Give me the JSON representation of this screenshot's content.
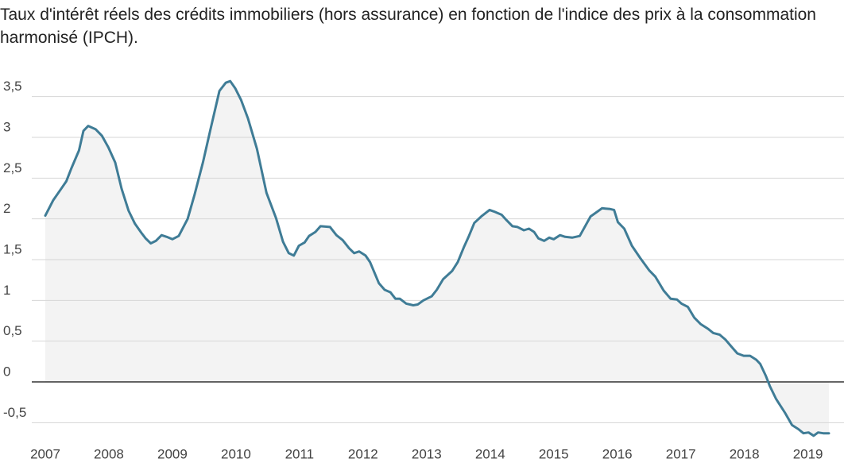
{
  "chart_data": {
    "type": "line",
    "title": "Taux d'intérêt réels des crédits immobiliers (hors assurance) en fonction de l'indice des prix à  la consommation harmonisé (IPCH).",
    "color": "#3f7c96",
    "x": [
      2007.0,
      2007.125,
      2007.25,
      2007.33,
      2007.41,
      2007.53,
      2007.6,
      2007.675,
      2007.79,
      2007.89,
      2007.99,
      2008.1,
      2008.2,
      2008.31,
      2008.41,
      2008.51,
      2008.58,
      2008.66,
      2008.74,
      2008.83,
      2008.91,
      2009.0,
      2009.1,
      2009.24,
      2009.35,
      2009.48,
      2009.6,
      2009.74,
      2009.84,
      2009.91,
      2009.99,
      2010.08,
      2010.19,
      2010.33,
      2010.48,
      2010.63,
      2010.74,
      2010.83,
      2010.91,
      2010.99,
      2011.08,
      2011.15,
      2011.25,
      2011.33,
      2011.48,
      2011.58,
      2011.68,
      2011.78,
      2011.86,
      2011.94,
      2012.04,
      2012.11,
      2012.25,
      2012.34,
      2012.43,
      2012.51,
      2012.58,
      2012.68,
      2012.79,
      2012.86,
      2012.95,
      2013.08,
      2013.16,
      2013.26,
      2013.4,
      2013.49,
      2013.59,
      2013.66,
      2013.75,
      2013.86,
      2013.99,
      2014.06,
      2014.18,
      2014.25,
      2014.35,
      2014.43,
      2014.53,
      2014.61,
      2014.69,
      2014.76,
      2014.85,
      2014.93,
      2015.0,
      2015.1,
      2015.18,
      2015.29,
      2015.41,
      2015.58,
      2015.69,
      2015.76,
      2015.89,
      2015.95,
      2016.01,
      2016.11,
      2016.23,
      2016.36,
      2016.5,
      2016.6,
      2016.73,
      2016.84,
      2016.94,
      2017.01,
      2017.11,
      2017.21,
      2017.31,
      2017.43,
      2017.51,
      2017.61,
      2017.7,
      2017.8,
      2017.89,
      2017.99,
      2018.09,
      2018.19,
      2018.25,
      2018.34,
      2018.4,
      2018.5,
      2018.64,
      2018.75,
      2018.85,
      2018.93,
      2019.01,
      2019.09,
      2019.16,
      2019.24,
      2019.33
    ],
    "values": [
      2.04,
      2.23,
      2.37,
      2.46,
      2.62,
      2.84,
      3.08,
      3.14,
      3.1,
      3.02,
      2.88,
      2.69,
      2.37,
      2.1,
      1.94,
      1.83,
      1.76,
      1.7,
      1.73,
      1.8,
      1.78,
      1.75,
      1.79,
      2.0,
      2.3,
      2.69,
      3.1,
      3.57,
      3.67,
      3.69,
      3.6,
      3.46,
      3.23,
      2.86,
      2.32,
      2.01,
      1.72,
      1.58,
      1.55,
      1.67,
      1.71,
      1.79,
      1.84,
      1.91,
      1.9,
      1.8,
      1.74,
      1.64,
      1.58,
      1.6,
      1.55,
      1.47,
      1.21,
      1.13,
      1.1,
      1.02,
      1.02,
      0.96,
      0.94,
      0.95,
      1.0,
      1.05,
      1.13,
      1.26,
      1.36,
      1.47,
      1.66,
      1.78,
      1.95,
      2.03,
      2.11,
      2.09,
      2.05,
      1.99,
      1.91,
      1.9,
      1.86,
      1.88,
      1.84,
      1.76,
      1.73,
      1.77,
      1.75,
      1.8,
      1.78,
      1.77,
      1.79,
      2.03,
      2.09,
      2.13,
      2.12,
      2.11,
      1.96,
      1.88,
      1.67,
      1.52,
      1.37,
      1.29,
      1.12,
      1.02,
      1.01,
      0.96,
      0.92,
      0.79,
      0.71,
      0.65,
      0.6,
      0.58,
      0.52,
      0.43,
      0.35,
      0.32,
      0.32,
      0.27,
      0.22,
      0.07,
      -0.05,
      -0.21,
      -0.38,
      -0.53,
      -0.58,
      -0.63,
      -0.62,
      -0.66,
      -0.62,
      -0.63,
      -0.63
    ],
    "xlim": [
      2007,
      2019.33
    ],
    "xticks": [
      2007,
      2008,
      2009,
      2010,
      2011,
      2012,
      2013,
      2014,
      2015,
      2016,
      2017,
      2018,
      2019
    ],
    "ylim": [
      -0.75,
      3.75
    ],
    "yticks": [
      {
        "value": -0.5,
        "label": "-0,5"
      },
      0,
      {
        "value": 0.5,
        "label": "0,5"
      },
      1,
      {
        "value": 1.5,
        "label": "1,5"
      },
      2,
      {
        "value": 2.5,
        "label": "2,5"
      },
      3,
      {
        "value": 3.5,
        "label": "3,5"
      }
    ],
    "grid": true
  }
}
